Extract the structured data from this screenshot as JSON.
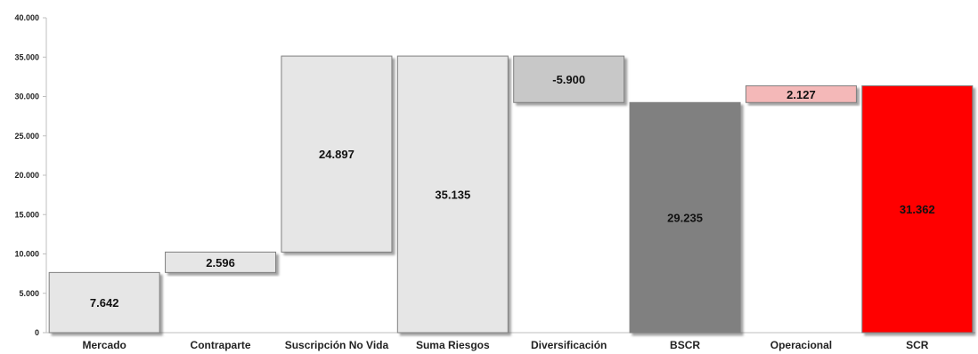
{
  "chart_data": {
    "type": "bar",
    "subtype": "waterfall",
    "title": "",
    "xlabel": "",
    "ylabel": "",
    "ylim": [
      0,
      40000
    ],
    "y_ticks": [
      "0",
      "5.000",
      "10.000",
      "15.000",
      "20.000",
      "25.000",
      "30.000",
      "35.000",
      "40.000"
    ],
    "y_tick_values": [
      0,
      5000,
      10000,
      15000,
      20000,
      25000,
      30000,
      35000,
      40000
    ],
    "grid": false,
    "legend": "none",
    "categories": [
      "Mercado",
      "Contraparte",
      "Suscripción No Vida",
      "Suma Riesgos",
      "Diversificación",
      "BSCR",
      "Operacional",
      "SCR"
    ],
    "bars": [
      {
        "category": "Mercado",
        "base": 0,
        "value": 7642,
        "label": "7.642",
        "color": "#e6e6e6",
        "label_color": "#111111"
      },
      {
        "category": "Contraparte",
        "base": 7642,
        "value": 2596,
        "label": "2.596",
        "color": "#e6e6e6",
        "label_color": "#111111"
      },
      {
        "category": "Suscripción No Vida",
        "base": 10238,
        "value": 24897,
        "label": "24.897",
        "color": "#e6e6e6",
        "label_color": "#111111"
      },
      {
        "category": "Suma Riesgos",
        "base": 0,
        "value": 35135,
        "label": "35.135",
        "color": "#e6e6e6",
        "label_color": "#111111"
      },
      {
        "category": "Diversificación",
        "base": 29235,
        "value": 5900,
        "label": "-5.900",
        "color": "#c8c8c8",
        "label_color": "#111111"
      },
      {
        "category": "BSCR",
        "base": 0,
        "value": 29235,
        "label": "29.235",
        "color": "#808080",
        "label_color": "#111111"
      },
      {
        "category": "Operacional",
        "base": 29235,
        "value": 2127,
        "label": "2.127",
        "color": "#f4b8b8",
        "label_color": "#111111"
      },
      {
        "category": "SCR",
        "base": 0,
        "value": 31362,
        "label": "31.362",
        "color": "#ff0000",
        "label_color": "#8b0000"
      }
    ]
  }
}
